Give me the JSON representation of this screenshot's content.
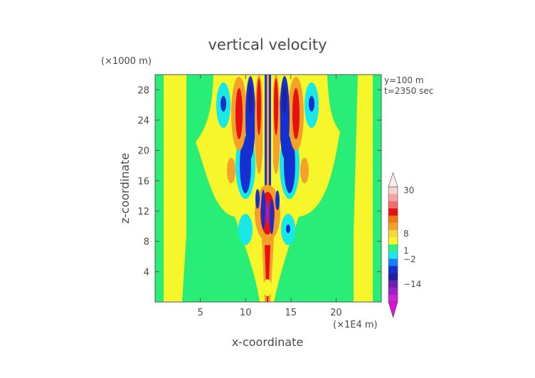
{
  "chart_data": {
    "type": "heatmap",
    "title": "vertical velocity",
    "xlabel": "x-coordinate",
    "ylabel": "z-coordinate",
    "x_unit_label": "(×1E4 m)",
    "y_unit_label": "(×1000 m)",
    "annotations": [
      "y=100 m",
      "t=2350 sec"
    ],
    "xlim": [
      0,
      25
    ],
    "ylim": [
      0,
      30
    ],
    "x_ticks": [
      5,
      10,
      15,
      20
    ],
    "y_ticks": [
      4,
      8,
      12,
      16,
      20,
      24,
      28
    ],
    "colorbar": {
      "labels": [
        "30",
        "8",
        "1",
        "−2",
        "−14"
      ],
      "colors": [
        "#f3d3cf",
        "#f2a4a4",
        "#f36e6e",
        "#e81010",
        "#f0780f",
        "#f4a12a",
        "#f8d83a",
        "#f6f62a",
        "#30f080",
        "#18e8e8",
        "#1a7fff",
        "#1530d0",
        "#2020a0",
        "#6a1fb0",
        "#9a20c8",
        "#d020d8"
      ]
    },
    "features": [
      {
        "name": "left-boundary-band",
        "x_range": [
          0.5,
          3.2
        ],
        "value_sign": "positive-small"
      },
      {
        "name": "right-boundary-band",
        "x_range": [
          22.2,
          24.3
        ],
        "value_sign": "positive-small"
      },
      {
        "name": "central-updraft",
        "x_center": 12.5,
        "z_range": [
          0,
          30
        ],
        "pattern": "alternating up/down wave columns"
      }
    ]
  },
  "colors": {
    "background_field": "#28ee78",
    "weak_positive": "#f6f62a",
    "moderate_positive": "#f4a12a",
    "strong_positive": "#e81010",
    "weak_negative": "#18e8e8",
    "strong_negative": "#1530d0"
  }
}
